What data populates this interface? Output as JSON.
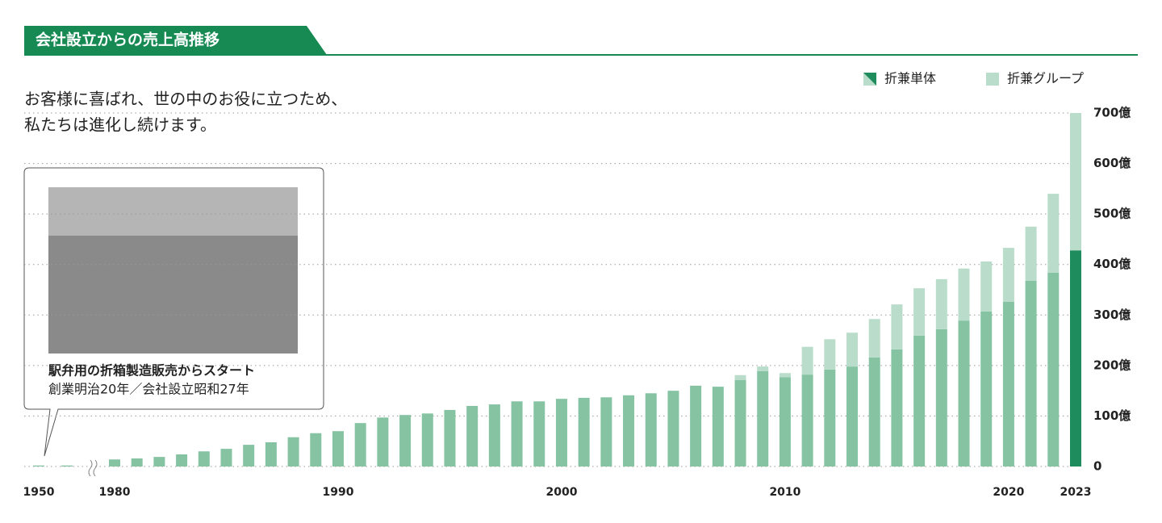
{
  "chart_data": {
    "type": "bar",
    "stacked": true,
    "title": "会社設立からの売上高推移",
    "subtitle": [
      "お客様に喜ばれ、世の中のお役に立つため、",
      "私たちは進化し続けます。"
    ],
    "annotation": [
      "駅弁用の折箱製造販売からスタート",
      "創業明治20年／会社設立昭和27年"
    ],
    "categories": [
      "1950",
      null,
      "1980",
      null,
      null,
      null,
      null,
      null,
      null,
      null,
      null,
      null,
      "1990",
      null,
      null,
      null,
      null,
      null,
      null,
      null,
      null,
      null,
      "2000",
      null,
      null,
      null,
      null,
      null,
      null,
      null,
      null,
      null,
      "2010",
      null,
      null,
      null,
      null,
      null,
      null,
      null,
      null,
      null,
      "2020",
      null,
      null,
      "2023"
    ],
    "axis_break_after": 1,
    "series": [
      {
        "name": "折兼単体",
        "color": "#86c3a3",
        "highlight_color": "#1e8c5c",
        "values": [
          2,
          2,
          14,
          16,
          19,
          24,
          30,
          35,
          43,
          48,
          58,
          66,
          70,
          86,
          97,
          102,
          105,
          112,
          120,
          123,
          129,
          129,
          134,
          136,
          137,
          141,
          145,
          150,
          160,
          158,
          171,
          189,
          177,
          182,
          192,
          198,
          216,
          232,
          259,
          272,
          289,
          307,
          326,
          368,
          384,
          428
        ]
      },
      {
        "name": "折兼グループ",
        "color": "#b9ddca",
        "values": [
          null,
          null,
          null,
          null,
          null,
          null,
          null,
          null,
          null,
          null,
          null,
          null,
          null,
          null,
          null,
          null,
          null,
          null,
          null,
          null,
          null,
          null,
          null,
          null,
          null,
          null,
          null,
          null,
          null,
          null,
          10,
          9,
          8,
          55,
          60,
          67,
          76,
          89,
          94,
          99,
          103,
          99,
          107,
          107,
          156,
          272
        ]
      }
    ],
    "ylim": [
      0,
      700
    ],
    "yticks": [
      {
        "value": 0,
        "label": "0"
      },
      {
        "value": 100,
        "label": "100億"
      },
      {
        "value": 200,
        "label": "200億"
      },
      {
        "value": 300,
        "label": "300億"
      },
      {
        "value": 400,
        "label": "400億"
      },
      {
        "value": 500,
        "label": "500億"
      },
      {
        "value": 600,
        "label": "600億"
      },
      {
        "value": 700,
        "label": "700億"
      }
    ],
    "grid": true,
    "legend": "top-right"
  }
}
